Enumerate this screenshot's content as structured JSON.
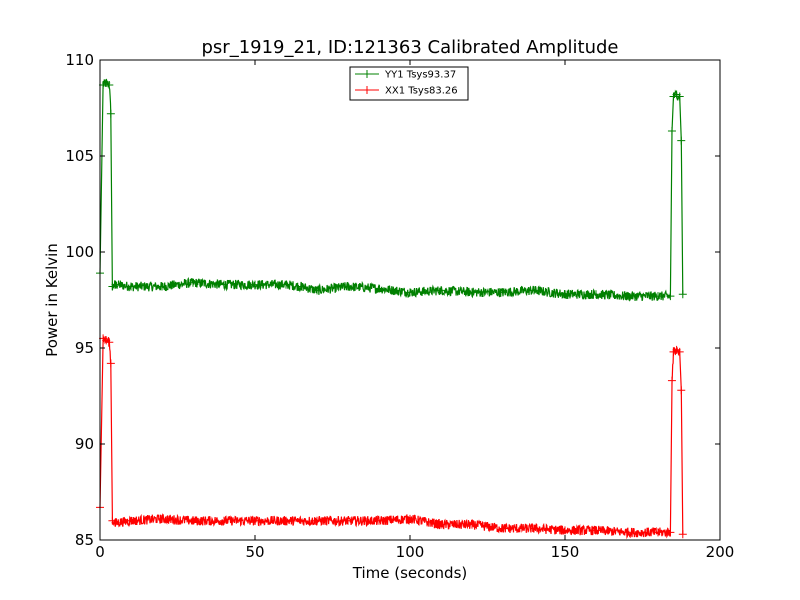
{
  "chart_data": {
    "type": "line",
    "title": "psr_1919_21, ID:121363 Calibrated Amplitude",
    "xlabel": "Time (seconds)",
    "ylabel": "Power in Kelvin",
    "xlim": [
      0,
      200
    ],
    "ylim": [
      85,
      110
    ],
    "xticks": [
      0,
      50,
      100,
      150,
      200
    ],
    "yticks": [
      85,
      90,
      95,
      100,
      105,
      110
    ],
    "grid": false,
    "legend_position": "top-center",
    "series": [
      {
        "name": "YY1 Tsys93.37",
        "color": "#008000",
        "x": [
          0,
          1,
          2,
          3,
          3.5,
          4,
          5,
          10,
          20,
          30,
          40,
          50,
          60,
          65,
          70,
          80,
          90,
          100,
          110,
          120,
          130,
          140,
          150,
          160,
          170,
          180,
          184,
          184.5,
          185,
          186,
          187,
          187.5,
          188
        ],
        "y": [
          98.9,
          108.7,
          108.8,
          108.7,
          107.2,
          98.2,
          98.3,
          98.2,
          98.2,
          98.4,
          98.3,
          98.3,
          98.3,
          98.2,
          98.0,
          98.2,
          98.1,
          97.9,
          98.0,
          97.9,
          97.9,
          98.0,
          97.8,
          97.8,
          97.7,
          97.7,
          97.7,
          106.3,
          108.1,
          108.2,
          108.1,
          105.8,
          97.8
        ]
      },
      {
        "name": "XX1 Tsys83.26",
        "color": "#ff0000",
        "x": [
          0,
          1,
          2,
          3,
          3.5,
          4,
          5,
          10,
          20,
          30,
          40,
          50,
          60,
          70,
          80,
          90,
          100,
          110,
          120,
          130,
          140,
          150,
          160,
          170,
          180,
          184,
          184.5,
          185,
          186,
          187,
          187.5,
          188
        ],
        "y": [
          86.7,
          95.5,
          95.4,
          95.3,
          94.2,
          86.0,
          85.9,
          86.0,
          86.1,
          86.0,
          86.0,
          86.0,
          86.0,
          86.0,
          86.0,
          86.0,
          86.1,
          85.8,
          85.8,
          85.6,
          85.6,
          85.5,
          85.5,
          85.4,
          85.4,
          85.4,
          93.3,
          94.8,
          94.9,
          94.8,
          92.8,
          85.3
        ]
      }
    ]
  }
}
